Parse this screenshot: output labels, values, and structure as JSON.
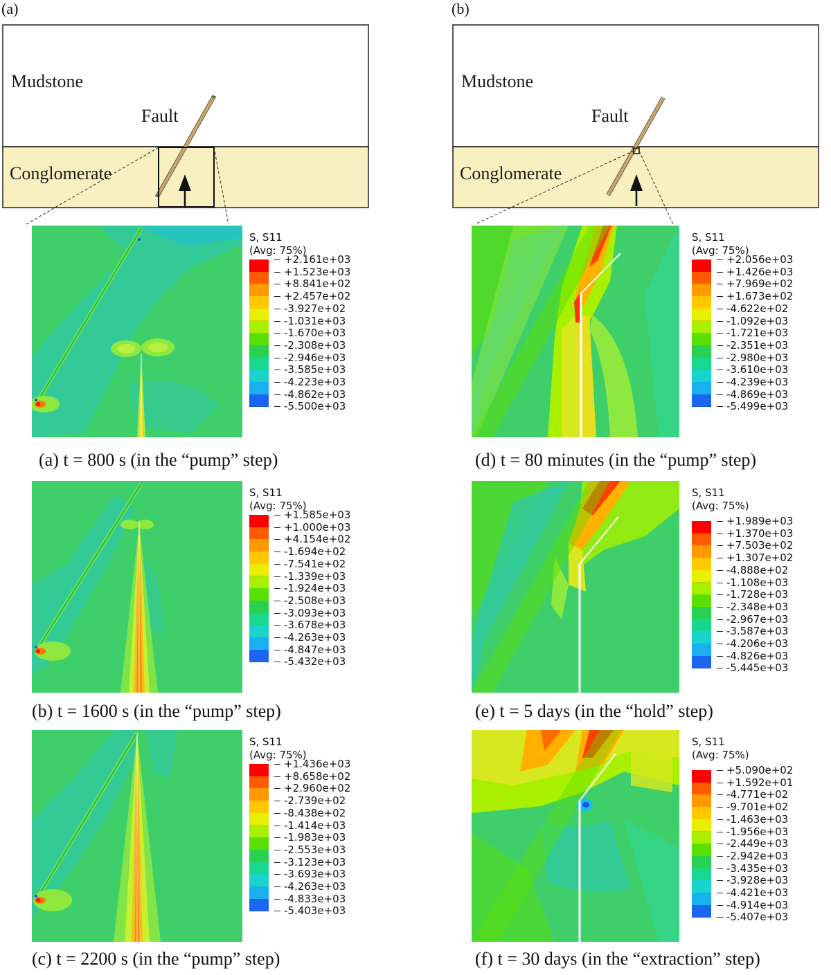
{
  "colors": {
    "mudstone": "#ffffff",
    "conglomerate": "#f8f0c0",
    "fault": "#c8a870",
    "background_contour": "#3fcf6a",
    "legend_scale": [
      "#ff0000",
      "#ff5a00",
      "#ff9900",
      "#ffc800",
      "#e6f000",
      "#a8f000",
      "#5ae000",
      "#28d250",
      "#18d890",
      "#18d4cc",
      "#1ab0f0",
      "#1a66f0",
      "#1a1aff"
    ]
  },
  "schematics": [
    {
      "label": "(a)",
      "mudstone_label": "Mudstone",
      "fault_label": "Fault",
      "conglomerate_label": "Conglomerate",
      "icons": [
        "injection-arrow-icon",
        "zoom-box-icon"
      ]
    },
    {
      "label": "(b)",
      "mudstone_label": "Mudstone",
      "fault_label": "Fault",
      "conglomerate_label": "Conglomerate",
      "icons": [
        "injection-arrow-icon",
        "zoom-box-icon"
      ]
    }
  ],
  "panels": [
    {
      "caption": "(a) t = 800 s (in the “pump” step)",
      "legend_title_1": "S, S11",
      "legend_title_2": "(Avg: 75%)",
      "ticks": [
        "+2.161e+03",
        "+1.523e+03",
        "+8.841e+02",
        "+2.457e+02",
        "-3.927e+02",
        "-1.031e+03",
        "-1.670e+03",
        "-2.308e+03",
        "-2.946e+03",
        "-3.585e+03",
        "-4.223e+03",
        "-4.862e+03",
        "-5.500e+03"
      ]
    },
    {
      "caption": "(b) t = 1600 s (in the “pump” step)",
      "legend_title_1": "S, S11",
      "legend_title_2": "(Avg: 75%)",
      "ticks": [
        "+1.585e+03",
        "+1.000e+03",
        "+4.154e+02",
        "-1.694e+02",
        "-7.541e+02",
        "-1.339e+03",
        "-1.924e+03",
        "-2.508e+03",
        "-3.093e+03",
        "-3.678e+03",
        "-4.263e+03",
        "-4.847e+03",
        "-5.432e+03"
      ]
    },
    {
      "caption": "(c) t = 2200 s (in the “pump” step)",
      "legend_title_1": "S, S11",
      "legend_title_2": "(Avg: 75%)",
      "ticks": [
        "+1.436e+03",
        "+8.658e+02",
        "+2.960e+02",
        "-2.739e+02",
        "-8.438e+02",
        "-1.414e+03",
        "-1.983e+03",
        "-2.553e+03",
        "-3.123e+03",
        "-3.693e+03",
        "-4.263e+03",
        "-4.833e+03",
        "-5.403e+03"
      ]
    },
    {
      "caption": "(d) t = 80 minutes (in the “pump” step)",
      "legend_title_1": "S, S11",
      "legend_title_2": "(Avg: 75%)",
      "ticks": [
        "+2.056e+03",
        "+1.426e+03",
        "+7.969e+02",
        "+1.673e+02",
        "-4.622e+02",
        "-1.092e+03",
        "-1.721e+03",
        "-2.351e+03",
        "-2.980e+03",
        "-3.610e+03",
        "-4.239e+03",
        "-4.869e+03",
        "-5.499e+03"
      ]
    },
    {
      "caption": "(e) t = 5 days (in the “hold” step)",
      "legend_title_1": "S, S11",
      "legend_title_2": "(Avg: 75%)",
      "ticks": [
        "+1.989e+03",
        "+1.370e+03",
        "+7.503e+02",
        "+1.307e+02",
        "-4.888e+02",
        "-1.108e+03",
        "-1.728e+03",
        "-2.348e+03",
        "-2.967e+03",
        "-3.587e+03",
        "-4.206e+03",
        "-4.826e+03",
        "-5.445e+03"
      ]
    },
    {
      "caption": "(f) t = 30 days (in the “extraction” step)",
      "legend_title_1": "S, S11",
      "legend_title_2": "(Avg: 75%)",
      "ticks": [
        "+5.090e+02",
        "+1.592e+01",
        "-4.771e+02",
        "-9.701e+02",
        "-1.463e+03",
        "-1.956e+03",
        "-2.449e+03",
        "-2.942e+03",
        "-3.435e+03",
        "-3.928e+03",
        "-4.421e+03",
        "-4.914e+03",
        "-5.407e+03"
      ]
    }
  ]
}
